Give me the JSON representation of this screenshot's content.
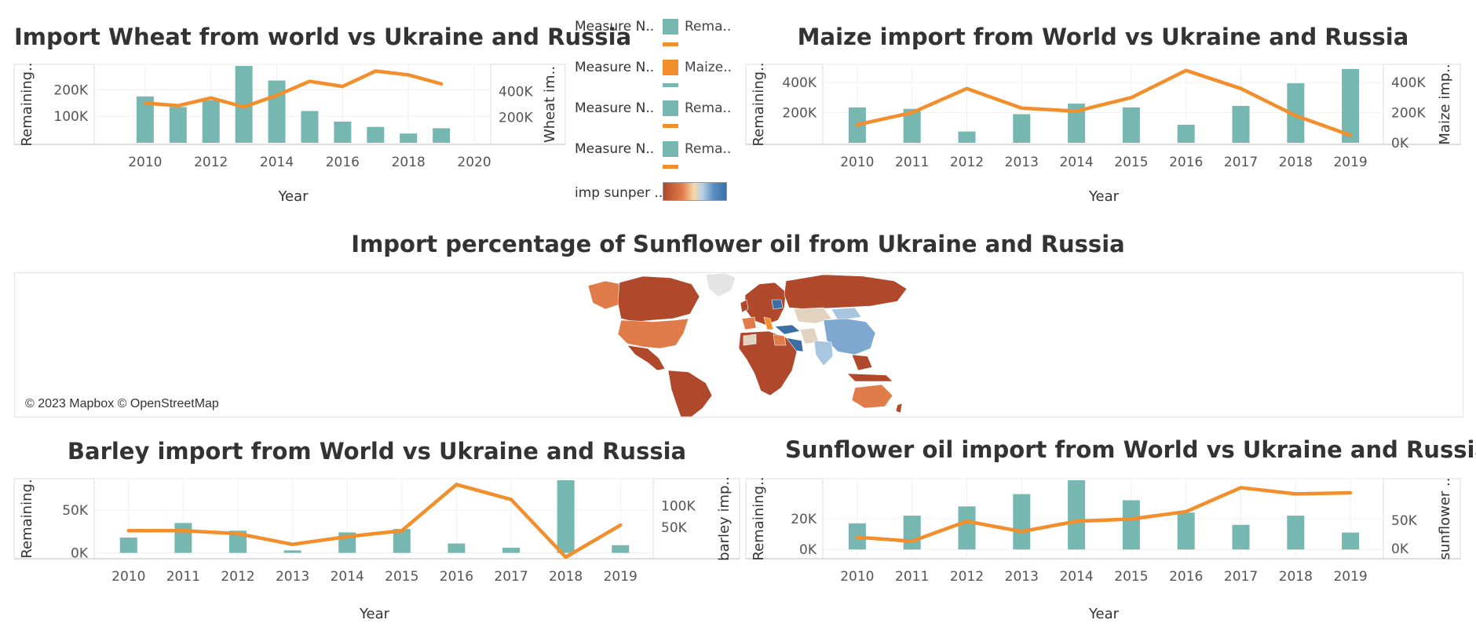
{
  "colors": {
    "bar": "#76b7b2",
    "line": "#f28e2b",
    "map_low": "#b0492c",
    "map_high": "#3b6ea5"
  },
  "titles": {
    "wheat": "Import Wheat from world vs Ukraine and Russia",
    "maize": "Maize import from World vs Ukraine and Russia",
    "map": "Import percentage of Sunflower oil from Ukraine and Russia",
    "barley": "Barley import from World vs Ukraine and Russia",
    "sunflower": "Sunflower oil import from World vs Ukraine and Russia"
  },
  "legend": {
    "rows": [
      {
        "label": "Measure N..",
        "swatch": "#76b7b2",
        "text": "Rema..",
        "line": "#f28e2b"
      },
      {
        "label": "Measure N..",
        "swatch": "#f28e2b",
        "text": "Maize..",
        "line": "#76b7b2"
      },
      {
        "label": "Measure N..",
        "swatch": "#76b7b2",
        "text": "Rema..",
        "line": "#f28e2b"
      },
      {
        "label": "Measure N..",
        "swatch": "#76b7b2",
        "text": "Rema..",
        "line": "#f28e2b"
      }
    ],
    "gradient_label": "imp sunper .."
  },
  "map": {
    "attribution": "© 2023 Mapbox © OpenStreetMap"
  },
  "chart_data": [
    {
      "id": "wheat",
      "type": "bar+line",
      "title": "Import Wheat from world vs Ukraine and Russia",
      "xlabel": "Year",
      "ylabel_left": "Remaining..",
      "ylabel_right": "Wheat im..",
      "x_ticks": [
        2010,
        2012,
        2014,
        2016,
        2018,
        2020
      ],
      "x_range": [
        2008.5,
        2020.5
      ],
      "y_left_ticks": [
        {
          "v": 100000,
          "t": "100K"
        },
        {
          "v": 200000,
          "t": "200K"
        }
      ],
      "y_left_range": [
        0,
        290000
      ],
      "y_right_ticks": [
        {
          "v": 200000,
          "t": "200K"
        },
        {
          "v": 400000,
          "t": "400K"
        }
      ],
      "y_right_range": [
        0,
        600000
      ],
      "bars": {
        "x": [
          2010,
          2011,
          2012,
          2013,
          2014,
          2015,
          2016,
          2017,
          2018,
          2019
        ],
        "values": [
          175000,
          135000,
          160000,
          290000,
          235000,
          120000,
          80000,
          60000,
          35000,
          55000
        ]
      },
      "line": {
        "x": [
          2010,
          2011,
          2012,
          2013,
          2014,
          2015,
          2016,
          2017,
          2018,
          2019
        ],
        "values": [
          310000,
          290000,
          350000,
          280000,
          370000,
          480000,
          440000,
          560000,
          530000,
          460000
        ]
      }
    },
    {
      "id": "maize",
      "type": "bar+line",
      "title": "Maize import from World vs Ukraine and Russia",
      "xlabel": "Year",
      "ylabel_left": "Remaining..",
      "ylabel_right": "Maize imp..",
      "x_ticks": [
        2010,
        2011,
        2012,
        2013,
        2014,
        2015,
        2016,
        2017,
        2018,
        2019
      ],
      "x_range": [
        2009.4,
        2019.6
      ],
      "y_left_ticks": [
        {
          "v": 200000,
          "t": "200K"
        },
        {
          "v": 400000,
          "t": "400K"
        }
      ],
      "y_left_range": [
        0,
        510000
      ],
      "y_right_ticks": [
        {
          "v": 0,
          "t": "0K"
        },
        {
          "v": 200000,
          "t": "200K"
        },
        {
          "v": 400000,
          "t": "400K"
        }
      ],
      "y_right_range": [
        0,
        510000
      ],
      "bars": {
        "x": [
          2010,
          2011,
          2012,
          2013,
          2014,
          2015,
          2016,
          2017,
          2018,
          2019
        ],
        "values": [
          235000,
          225000,
          75000,
          190000,
          260000,
          235000,
          120000,
          245000,
          395000,
          490000
        ]
      },
      "line": {
        "x": [
          2010,
          2011,
          2012,
          2013,
          2014,
          2015,
          2016,
          2017,
          2018,
          2019
        ],
        "values": [
          120000,
          200000,
          360000,
          230000,
          210000,
          300000,
          480000,
          360000,
          180000,
          50000
        ]
      }
    },
    {
      "id": "barley",
      "type": "bar+line",
      "title": "Barley import from World vs Ukraine and Russia",
      "xlabel": "Year",
      "ylabel_left": "Remaining.",
      "ylabel_right": "barley imp..",
      "x_ticks": [
        2010,
        2011,
        2012,
        2013,
        2014,
        2015,
        2016,
        2017,
        2018,
        2019
      ],
      "x_range": [
        2009.4,
        2019.6
      ],
      "y_left_ticks": [
        {
          "v": 0,
          "t": "0K"
        },
        {
          "v": 50000,
          "t": "50K"
        }
      ],
      "y_left_range": [
        -5000,
        85000
      ],
      "y_right_ticks": [
        {
          "v": 50000,
          "t": "50K"
        },
        {
          "v": 100000,
          "t": "100K"
        }
      ],
      "y_right_range": [
        -20000,
        160000
      ],
      "bars": {
        "x": [
          2010,
          2011,
          2012,
          2013,
          2014,
          2015,
          2016,
          2017,
          2018,
          2019
        ],
        "values": [
          18000,
          35000,
          26000,
          3000,
          24000,
          28000,
          11000,
          6000,
          85000,
          9000
        ]
      },
      "line": {
        "x": [
          2010,
          2011,
          2012,
          2013,
          2014,
          2015,
          2016,
          2017,
          2018,
          2019
        ],
        "values": [
          42000,
          42000,
          35000,
          10000,
          28000,
          42000,
          150000,
          115000,
          -20000,
          55000
        ]
      }
    },
    {
      "id": "sunflower",
      "type": "bar+line",
      "title": "Sunflower oil import from World vs Ukraine and Russia",
      "xlabel": "Year",
      "ylabel_left": "Remaining..",
      "ylabel_right": "sunflower ..",
      "x_ticks": [
        2010,
        2011,
        2012,
        2013,
        2014,
        2015,
        2016,
        2017,
        2018,
        2019
      ],
      "x_range": [
        2009.4,
        2019.6
      ],
      "y_left_ticks": [
        {
          "v": 0,
          "t": "0K"
        },
        {
          "v": 20000,
          "t": "20K"
        }
      ],
      "y_left_range": [
        -5000,
        45000
      ],
      "y_right_ticks": [
        {
          "v": 0,
          "t": "0K"
        },
        {
          "v": 50000,
          "t": "50K"
        }
      ],
      "y_right_range": [
        -15000,
        120000
      ],
      "bars": {
        "x": [
          2010,
          2011,
          2012,
          2013,
          2014,
          2015,
          2016,
          2017,
          2018,
          2019
        ],
        "values": [
          17000,
          22000,
          28000,
          36000,
          45000,
          32000,
          24000,
          16000,
          22000,
          11000
        ]
      },
      "line": {
        "x": [
          2010,
          2011,
          2012,
          2013,
          2014,
          2015,
          2016,
          2017,
          2018,
          2019
        ],
        "values": [
          20000,
          13000,
          48000,
          30000,
          48000,
          52000,
          65000,
          107000,
          96000,
          98000
        ]
      }
    }
  ]
}
